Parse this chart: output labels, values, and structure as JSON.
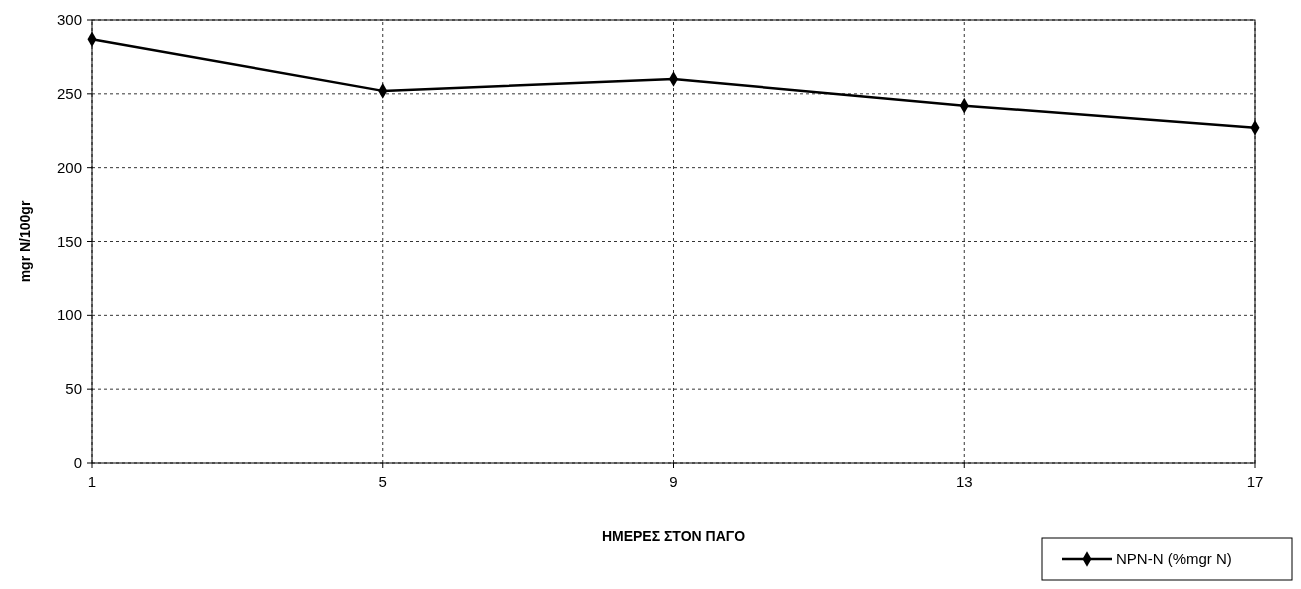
{
  "chart_data": {
    "type": "line",
    "xlabel": "ΗΜΕΡΕΣ ΣΤΟΝ ΠΑΓΟ",
    "ylabel": "mgr N/100gr",
    "x": [
      1,
      5,
      9,
      13,
      17
    ],
    "series": [
      {
        "name": "NPN-N (%mgr N)",
        "color": "#000000",
        "values": [
          287,
          252,
          260,
          242,
          227
        ]
      }
    ],
    "xlim": [
      1,
      17
    ],
    "xticks": [
      1,
      5,
      9,
      13,
      17
    ],
    "ylim": [
      0,
      300
    ],
    "yticks": [
      0,
      50,
      100,
      150,
      200,
      250,
      300
    ],
    "grid": true,
    "legend": "bottom right",
    "marker": "diamond",
    "line_style": "solid"
  }
}
